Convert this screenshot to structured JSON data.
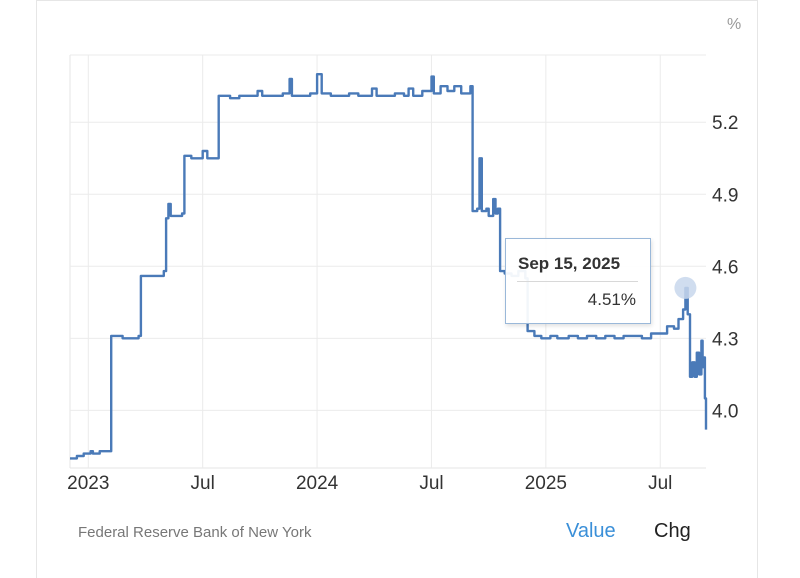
{
  "unit_label": "%",
  "source": "Federal Reserve Bank of New York",
  "buttons": {
    "value": "Value",
    "chg": "Chg"
  },
  "tooltip": {
    "date": "Sep 15, 2025",
    "value": "4.51%"
  },
  "colors": {
    "line": "#4a7ab8",
    "marker": "#c8d7ec",
    "grid": "#ebebeb",
    "active_button": "#3a8fd8"
  },
  "chart_data": {
    "type": "line",
    "title": "",
    "xlabel": "",
    "ylabel": "%",
    "grid": true,
    "y_ticks": [
      4.0,
      4.3,
      4.6,
      4.9,
      5.2
    ],
    "x_ticks": [
      {
        "label": "2023",
        "t": 2023.0
      },
      {
        "label": "Jul",
        "t": 2023.5
      },
      {
        "label": "2024",
        "t": 2024.0
      },
      {
        "label": "Jul",
        "t": 2024.5
      },
      {
        "label": "2025",
        "t": 2025.0
      },
      {
        "label": "Jul",
        "t": 2025.5
      }
    ],
    "xlim": [
      2022.92,
      2025.7
    ],
    "ylim": [
      3.76,
      5.48
    ],
    "series": [
      {
        "values": [
          [
            2022.92,
            3.8
          ],
          [
            2022.95,
            3.81
          ],
          [
            2022.98,
            3.82
          ],
          [
            2023.01,
            3.83
          ],
          [
            2023.02,
            3.82
          ],
          [
            2023.05,
            3.83
          ],
          [
            2023.09,
            3.83
          ],
          [
            2023.1,
            4.31
          ],
          [
            2023.15,
            4.3
          ],
          [
            2023.2,
            4.3
          ],
          [
            2023.22,
            4.31
          ],
          [
            2023.23,
            4.56
          ],
          [
            2023.28,
            4.56
          ],
          [
            2023.32,
            4.56
          ],
          [
            2023.33,
            4.58
          ],
          [
            2023.34,
            4.8
          ],
          [
            2023.35,
            4.86
          ],
          [
            2023.36,
            4.81
          ],
          [
            2023.4,
            4.81
          ],
          [
            2023.41,
            4.82
          ],
          [
            2023.42,
            5.06
          ],
          [
            2023.45,
            5.05
          ],
          [
            2023.48,
            5.05
          ],
          [
            2023.5,
            5.08
          ],
          [
            2023.52,
            5.05
          ],
          [
            2023.56,
            5.05
          ],
          [
            2023.57,
            5.31
          ],
          [
            2023.62,
            5.3
          ],
          [
            2023.66,
            5.31
          ],
          [
            2023.7,
            5.31
          ],
          [
            2023.74,
            5.33
          ],
          [
            2023.76,
            5.31
          ],
          [
            2023.8,
            5.31
          ],
          [
            2023.85,
            5.32
          ],
          [
            2023.88,
            5.38
          ],
          [
            2023.89,
            5.31
          ],
          [
            2023.93,
            5.31
          ],
          [
            2023.97,
            5.32
          ],
          [
            2024.0,
            5.4
          ],
          [
            2024.02,
            5.32
          ],
          [
            2024.06,
            5.31
          ],
          [
            2024.1,
            5.31
          ],
          [
            2024.14,
            5.32
          ],
          [
            2024.18,
            5.31
          ],
          [
            2024.22,
            5.31
          ],
          [
            2024.24,
            5.34
          ],
          [
            2024.26,
            5.31
          ],
          [
            2024.3,
            5.31
          ],
          [
            2024.34,
            5.32
          ],
          [
            2024.38,
            5.31
          ],
          [
            2024.4,
            5.34
          ],
          [
            2024.42,
            5.31
          ],
          [
            2024.46,
            5.33
          ],
          [
            2024.5,
            5.39
          ],
          [
            2024.51,
            5.32
          ],
          [
            2024.54,
            5.35
          ],
          [
            2024.57,
            5.33
          ],
          [
            2024.6,
            5.35
          ],
          [
            2024.63,
            5.32
          ],
          [
            2024.67,
            5.35
          ],
          [
            2024.68,
            4.83
          ],
          [
            2024.7,
            4.84
          ],
          [
            2024.71,
            5.05
          ],
          [
            2024.72,
            4.83
          ],
          [
            2024.74,
            4.84
          ],
          [
            2024.75,
            4.81
          ],
          [
            2024.77,
            4.88
          ],
          [
            2024.78,
            4.82
          ],
          [
            2024.79,
            4.84
          ],
          [
            2024.8,
            4.58
          ],
          [
            2024.82,
            4.57
          ],
          [
            2024.85,
            4.56
          ],
          [
            2024.88,
            4.58
          ],
          [
            2024.91,
            4.55
          ],
          [
            2024.92,
            4.33
          ],
          [
            2024.95,
            4.31
          ],
          [
            2024.98,
            4.3
          ],
          [
            2025.02,
            4.31
          ],
          [
            2025.05,
            4.3
          ],
          [
            2025.1,
            4.31
          ],
          [
            2025.14,
            4.3
          ],
          [
            2025.18,
            4.31
          ],
          [
            2025.22,
            4.3
          ],
          [
            2025.26,
            4.31
          ],
          [
            2025.3,
            4.3
          ],
          [
            2025.34,
            4.31
          ],
          [
            2025.38,
            4.31
          ],
          [
            2025.42,
            4.3
          ],
          [
            2025.46,
            4.32
          ],
          [
            2025.5,
            4.32
          ],
          [
            2025.53,
            4.35
          ],
          [
            2025.56,
            4.34
          ],
          [
            2025.58,
            4.38
          ],
          [
            2025.6,
            4.42
          ],
          [
            2025.61,
            4.51
          ],
          [
            2025.62,
            4.4
          ],
          [
            2025.63,
            4.14
          ],
          [
            2025.64,
            4.2
          ],
          [
            2025.65,
            4.14
          ],
          [
            2025.66,
            4.24
          ],
          [
            2025.67,
            4.15
          ],
          [
            2025.68,
            4.29
          ],
          [
            2025.685,
            4.18
          ],
          [
            2025.69,
            4.22
          ],
          [
            2025.695,
            4.05
          ],
          [
            2025.7,
            3.92
          ]
        ]
      }
    ],
    "highlight": {
      "t": 2025.61,
      "v": 4.51
    }
  }
}
